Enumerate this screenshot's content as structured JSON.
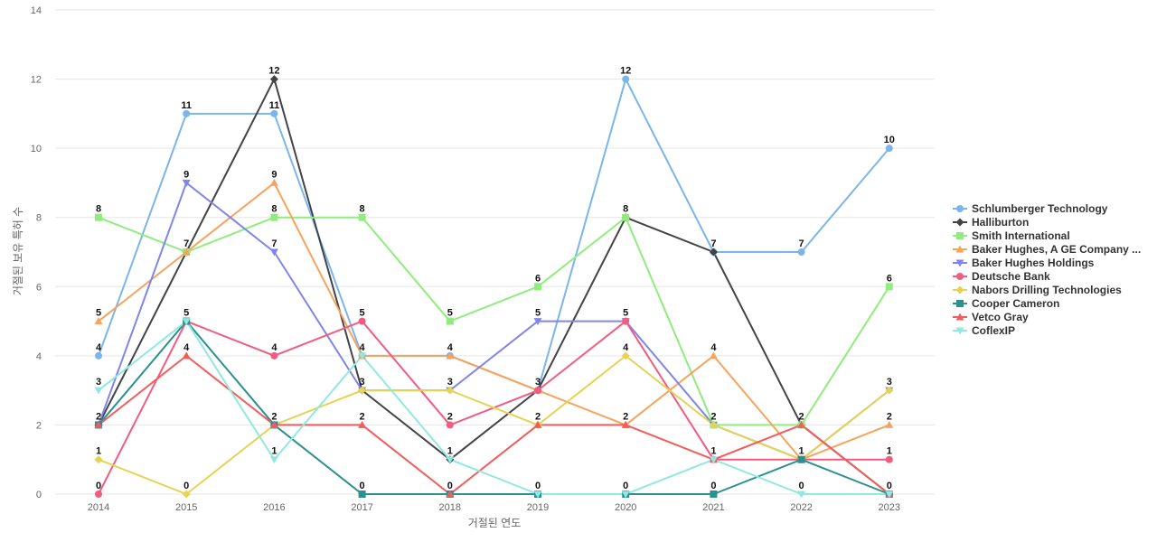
{
  "chart_data": {
    "type": "line",
    "title": "",
    "xlabel": "거절된 연도",
    "ylabel": "거절된 보유 특허 수",
    "categories": [
      "2014",
      "2015",
      "2016",
      "2017",
      "2018",
      "2019",
      "2020",
      "2021",
      "2022",
      "2023"
    ],
    "ylim": [
      0,
      14
    ],
    "yticks": [
      "0",
      "2",
      "4",
      "6",
      "8",
      "10",
      "12",
      "14"
    ],
    "grid": true,
    "legend_position": "right",
    "series": [
      {
        "name": "Schlumberger Technology",
        "color": "#7cb5ec",
        "marker": "circle",
        "values": [
          4,
          11,
          11,
          4,
          4,
          3,
          12,
          7,
          7,
          10
        ]
      },
      {
        "name": "Halliburton",
        "color": "#434348",
        "marker": "diamond",
        "values": [
          2,
          7,
          12,
          3,
          1,
          3,
          8,
          7,
          2,
          0
        ]
      },
      {
        "name": "Smith International",
        "color": "#90ed7d",
        "marker": "square",
        "values": [
          8,
          7,
          8,
          8,
          5,
          6,
          8,
          2,
          2,
          6
        ]
      },
      {
        "name": "Baker Hughes, A GE Company ...",
        "color": "#f7a35c",
        "marker": "triangle",
        "values": [
          5,
          7,
          9,
          4,
          4,
          3,
          2,
          4,
          1,
          2
        ]
      },
      {
        "name": "Baker Hughes Holdings",
        "color": "#8085e9",
        "marker": "triangle-down",
        "values": [
          2,
          9,
          7,
          3,
          3,
          5,
          5,
          2,
          1,
          3
        ]
      },
      {
        "name": "Deutsche Bank",
        "color": "#f15c80",
        "marker": "circle",
        "values": [
          0,
          5,
          4,
          5,
          2,
          3,
          5,
          1,
          1,
          1
        ]
      },
      {
        "name": "Nabors Drilling Technologies",
        "color": "#e4d354",
        "marker": "diamond",
        "values": [
          1,
          0,
          2,
          3,
          3,
          2,
          4,
          2,
          1,
          3
        ]
      },
      {
        "name": "Cooper Cameron",
        "color": "#2b908f",
        "marker": "square",
        "values": [
          2,
          5,
          2,
          0,
          0,
          0,
          0,
          0,
          1,
          0
        ]
      },
      {
        "name": "Vetco Gray",
        "color": "#f45b5b",
        "marker": "triangle",
        "values": [
          2,
          4,
          2,
          2,
          0,
          2,
          2,
          1,
          2,
          0
        ]
      },
      {
        "name": "CoflexIP",
        "color": "#91e8e1",
        "marker": "triangle-down",
        "values": [
          3,
          5,
          1,
          4,
          1,
          0,
          0,
          1,
          0,
          0
        ]
      }
    ],
    "data_labels": [
      {
        "category": "2014",
        "value": 8,
        "text": "8"
      },
      {
        "category": "2014",
        "value": 5,
        "text": "5"
      },
      {
        "category": "2014",
        "value": 4,
        "text": "4"
      },
      {
        "category": "2014",
        "value": 3,
        "text": "3"
      },
      {
        "category": "2014",
        "value": 2,
        "text": "2"
      },
      {
        "category": "2014",
        "value": 1,
        "text": "1"
      },
      {
        "category": "2014",
        "value": 0,
        "text": "0"
      },
      {
        "category": "2015",
        "value": 11,
        "text": "11"
      },
      {
        "category": "2015",
        "value": 9,
        "text": "9"
      },
      {
        "category": "2015",
        "value": 7,
        "text": "7"
      },
      {
        "category": "2015",
        "value": 5,
        "text": "5"
      },
      {
        "category": "2015",
        "value": 4,
        "text": "4"
      },
      {
        "category": "2015",
        "value": 0,
        "text": "0"
      },
      {
        "category": "2016",
        "value": 12,
        "text": "12"
      },
      {
        "category": "2016",
        "value": 11,
        "text": "11"
      },
      {
        "category": "2016",
        "value": 9,
        "text": "9"
      },
      {
        "category": "2016",
        "value": 8,
        "text": "8"
      },
      {
        "category": "2016",
        "value": 7,
        "text": "7"
      },
      {
        "category": "2016",
        "value": 4,
        "text": "4"
      },
      {
        "category": "2016",
        "value": 2,
        "text": "2"
      },
      {
        "category": "2016",
        "value": 1,
        "text": "1"
      },
      {
        "category": "2017",
        "value": 8,
        "text": "8"
      },
      {
        "category": "2017",
        "value": 5,
        "text": "5"
      },
      {
        "category": "2017",
        "value": 4,
        "text": "4"
      },
      {
        "category": "2017",
        "value": 3,
        "text": "3"
      },
      {
        "category": "2017",
        "value": 2,
        "text": "2"
      },
      {
        "category": "2017",
        "value": 0,
        "text": "0"
      },
      {
        "category": "2018",
        "value": 5,
        "text": "5"
      },
      {
        "category": "2018",
        "value": 4,
        "text": "4"
      },
      {
        "category": "2018",
        "value": 3,
        "text": "3"
      },
      {
        "category": "2018",
        "value": 2,
        "text": "2"
      },
      {
        "category": "2018",
        "value": 1,
        "text": "1"
      },
      {
        "category": "2018",
        "value": 0,
        "text": "0"
      },
      {
        "category": "2019",
        "value": 6,
        "text": "6"
      },
      {
        "category": "2019",
        "value": 5,
        "text": "5"
      },
      {
        "category": "2019",
        "value": 3,
        "text": "3"
      },
      {
        "category": "2019",
        "value": 2,
        "text": "2"
      },
      {
        "category": "2019",
        "value": 0,
        "text": "0"
      },
      {
        "category": "2020",
        "value": 12,
        "text": "12"
      },
      {
        "category": "2020",
        "value": 8,
        "text": "8"
      },
      {
        "category": "2020",
        "value": 5,
        "text": "5"
      },
      {
        "category": "2020",
        "value": 4,
        "text": "4"
      },
      {
        "category": "2020",
        "value": 2,
        "text": "2"
      },
      {
        "category": "2020",
        "value": 0,
        "text": "0"
      },
      {
        "category": "2021",
        "value": 7,
        "text": "7"
      },
      {
        "category": "2021",
        "value": 4,
        "text": "4"
      },
      {
        "category": "2021",
        "value": 2,
        "text": "2"
      },
      {
        "category": "2021",
        "value": 1,
        "text": "1"
      },
      {
        "category": "2021",
        "value": 0,
        "text": "0"
      },
      {
        "category": "2022",
        "value": 7,
        "text": "7"
      },
      {
        "category": "2022",
        "value": 2,
        "text": "2"
      },
      {
        "category": "2022",
        "value": 1,
        "text": "1"
      },
      {
        "category": "2022",
        "value": 0,
        "text": "0"
      },
      {
        "category": "2023",
        "value": 10,
        "text": "10"
      },
      {
        "category": "2023",
        "value": 6,
        "text": "6"
      },
      {
        "category": "2023",
        "value": 3,
        "text": "3"
      },
      {
        "category": "2023",
        "value": 2,
        "text": "2"
      },
      {
        "category": "2023",
        "value": 1,
        "text": "1"
      },
      {
        "category": "2023",
        "value": 0,
        "text": "0"
      }
    ]
  }
}
